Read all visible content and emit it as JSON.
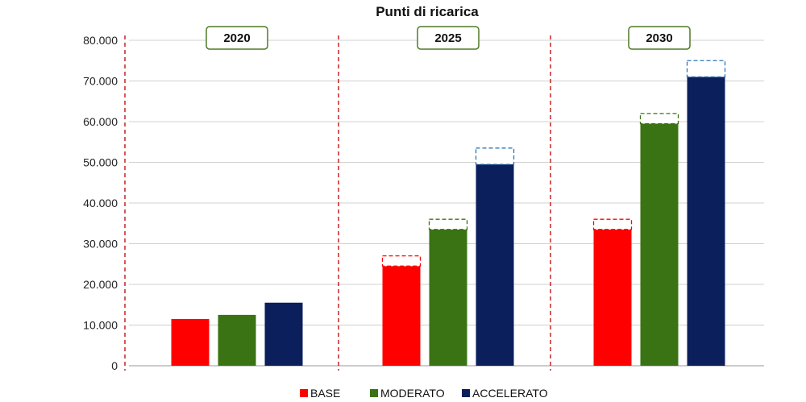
{
  "chart_data": {
    "type": "bar",
    "title": "Punti di ricarica",
    "xlabel": "",
    "ylabel": "",
    "ylim": [
      0,
      80000
    ],
    "yticks": [
      0,
      10000,
      20000,
      30000,
      40000,
      50000,
      60000,
      70000,
      80000
    ],
    "ytick_labels": [
      "0",
      "10.000",
      "20.000",
      "30.000",
      "40.000",
      "50.000",
      "60.000",
      "70.000",
      "80.000"
    ],
    "grid": true,
    "legend_position": "bottom",
    "categories": [
      "2020",
      "2025",
      "2030"
    ],
    "series": [
      {
        "name": "BASE",
        "color": "#ff0000",
        "values": [
          11500,
          24500,
          33500
        ],
        "upper_range": [
          null,
          27000,
          36000
        ]
      },
      {
        "name": "MODERATO",
        "color": "#3a7313",
        "values": [
          12500,
          33500,
          59500
        ],
        "upper_range": [
          null,
          36000,
          62000
        ]
      },
      {
        "name": "ACCELERATO",
        "color": "#0b1f5c",
        "values": [
          15500,
          49500,
          71000
        ],
        "upper_range": [
          null,
          53500,
          75000
        ]
      }
    ]
  }
}
